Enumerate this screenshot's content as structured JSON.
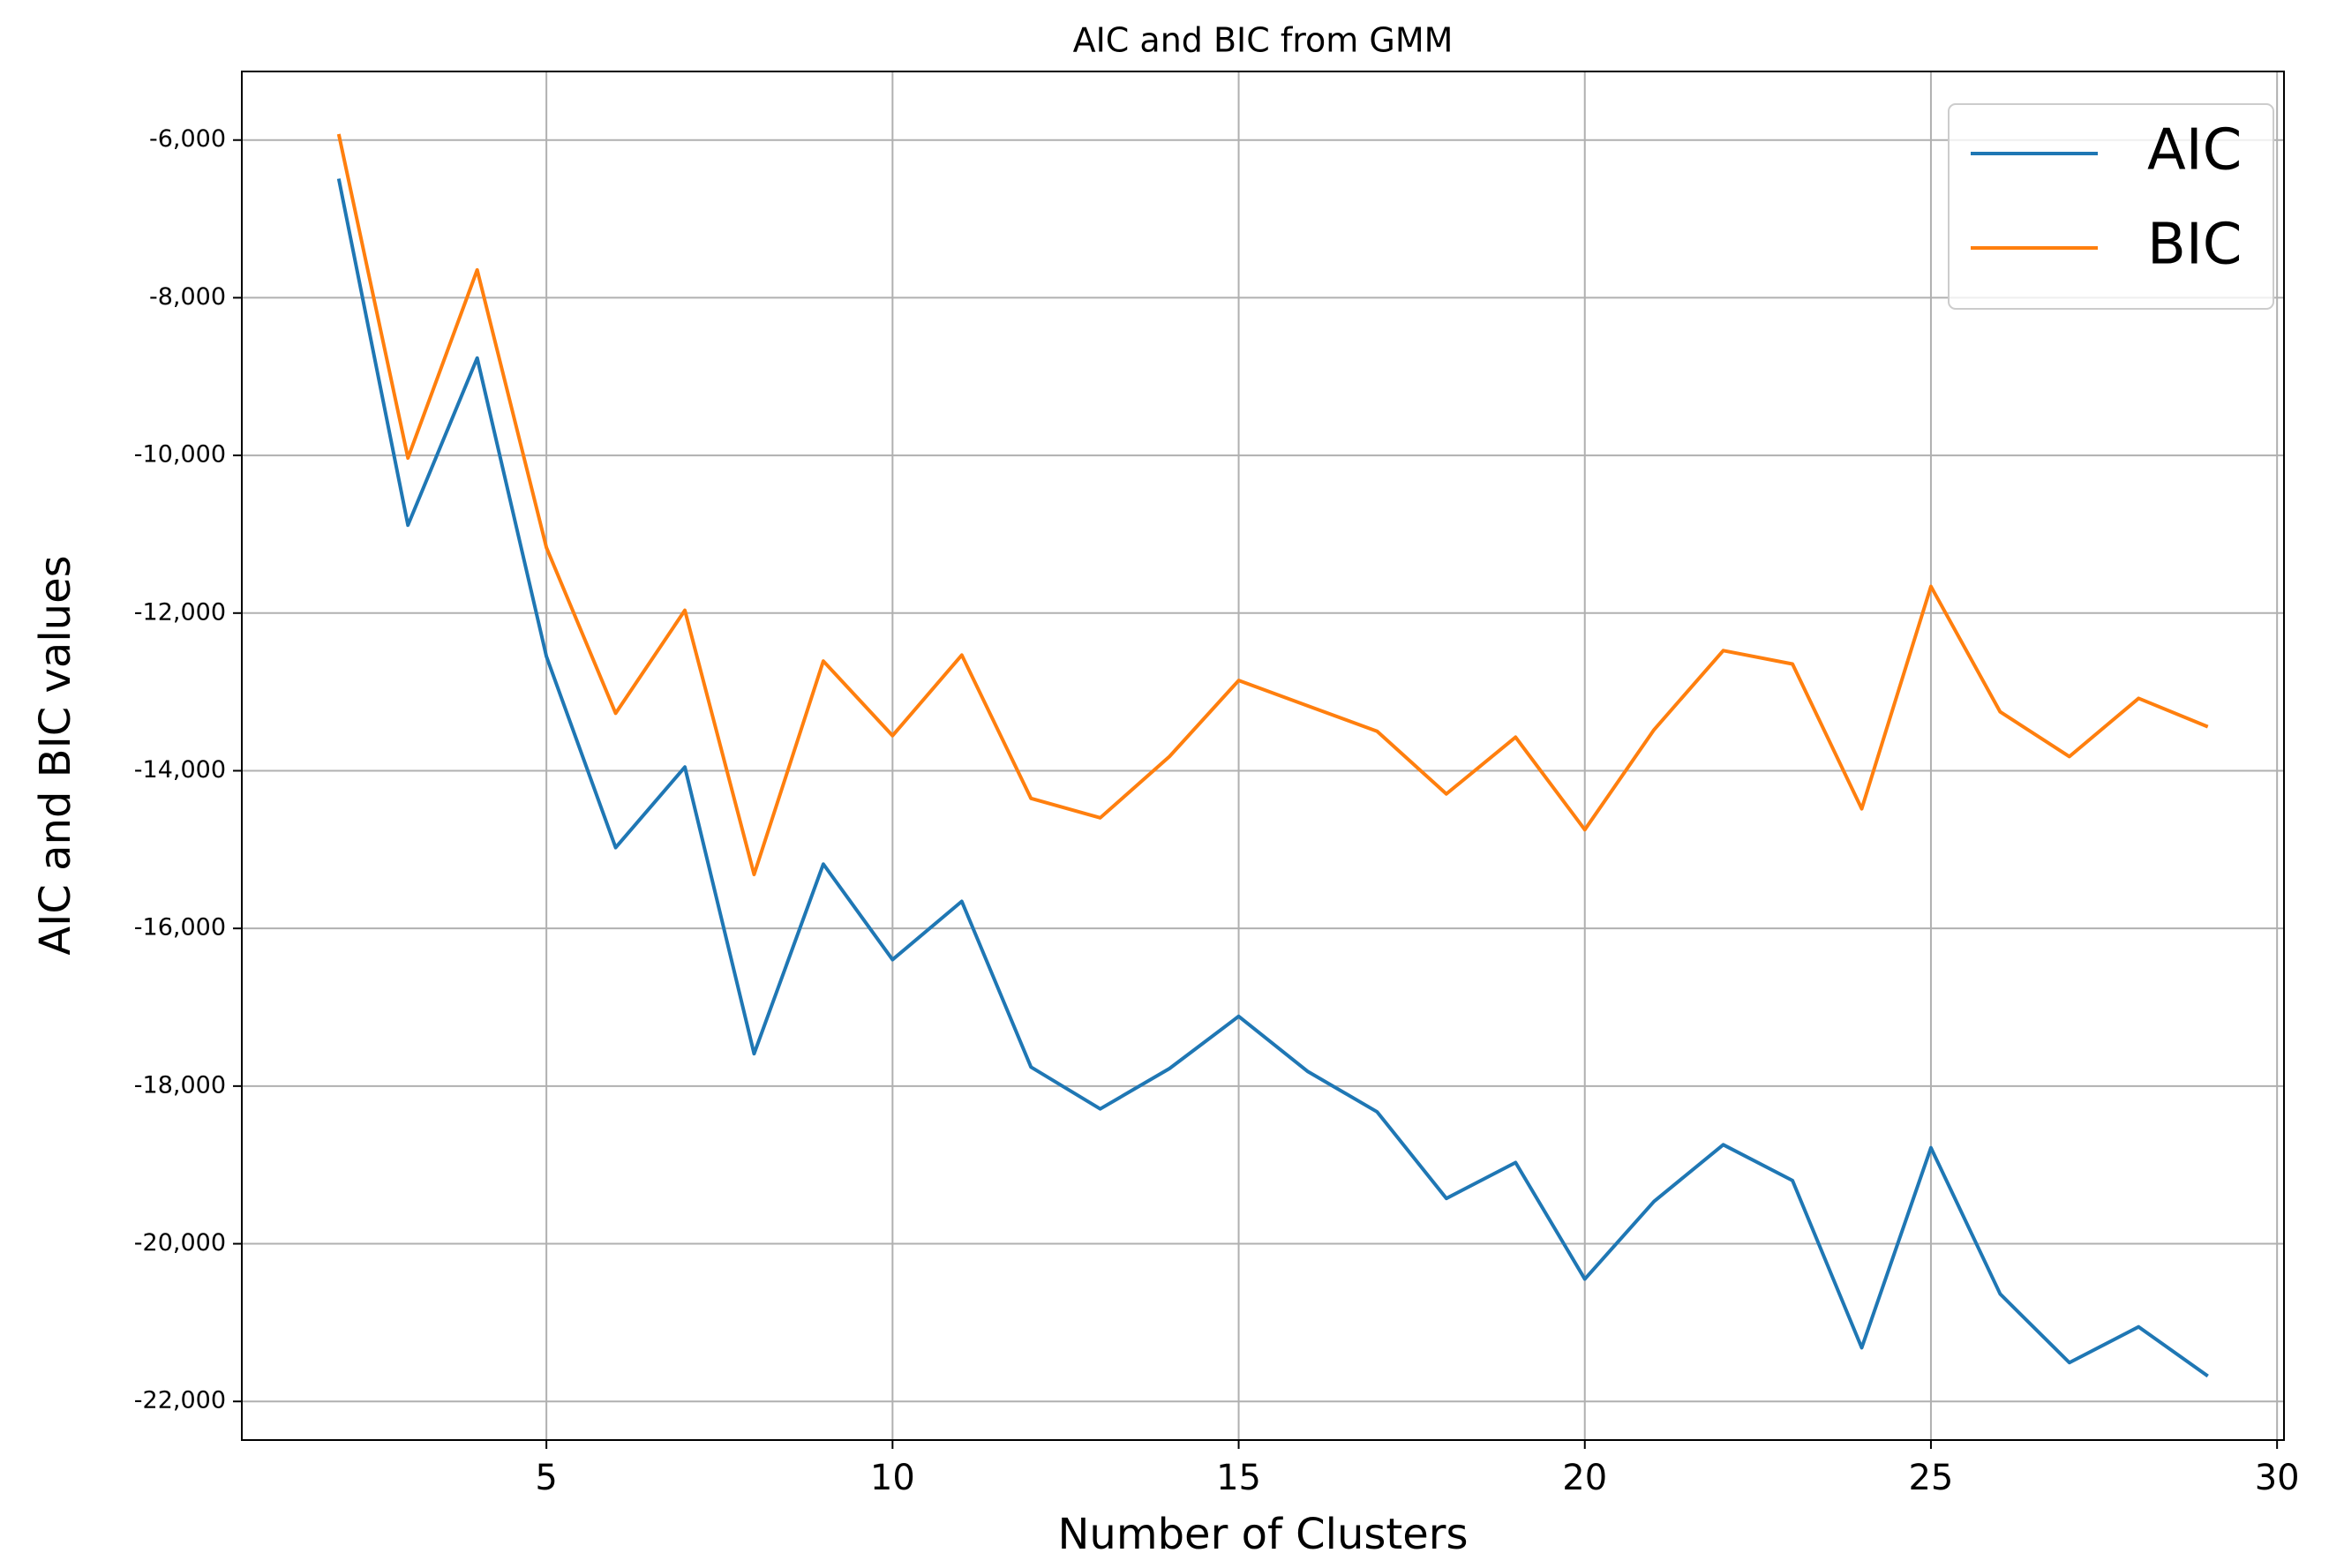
{
  "chart_data": {
    "type": "line",
    "title": "AIC and BIC from GMM",
    "x_label": "Number of Clusters",
    "y_label": "AIC and BIC values",
    "x": [
      2,
      3,
      4,
      5,
      6,
      7,
      8,
      9,
      10,
      11,
      12,
      13,
      14,
      15,
      16,
      17,
      18,
      19,
      20,
      21,
      22,
      23,
      24,
      25,
      26,
      27,
      28,
      29
    ],
    "series": [
      {
        "name": "AIC",
        "color": "#1f77b4",
        "values": [
          -6490,
          -10885,
          -8765,
          -12550,
          -14975,
          -13953,
          -17589,
          -15184,
          -16396,
          -15657,
          -17759,
          -18289,
          -17778,
          -17115,
          -17816,
          -18327,
          -19425,
          -18970,
          -20448,
          -19463,
          -18744,
          -19198,
          -21319,
          -18782,
          -20637,
          -21508,
          -21054,
          -21679
        ]
      },
      {
        "name": "BIC",
        "color": "#ff7f0e",
        "values": [
          -5924,
          -10033,
          -7647,
          -11169,
          -13271,
          -11965,
          -15316,
          -12609,
          -13555,
          -12533,
          -14351,
          -14597,
          -13820,
          -12855,
          -13177,
          -13499,
          -14294,
          -13574,
          -14748,
          -13480,
          -12476,
          -12646,
          -14483,
          -11662,
          -13253,
          -13820,
          -13082,
          -13442
        ]
      }
    ],
    "xlim": [
      0.6,
      30.1
    ],
    "xticks": [
      5,
      10,
      15,
      20,
      25,
      30
    ],
    "ylim": [
      -22490,
      -5130
    ],
    "yticks": [
      {
        "value": -22000,
        "label": "-22,000"
      },
      {
        "value": -20000,
        "label": "-20,000"
      },
      {
        "value": -18000,
        "label": "-18,000"
      },
      {
        "value": -16000,
        "label": "-16,000"
      },
      {
        "value": -14000,
        "label": "-14,000"
      },
      {
        "value": -12000,
        "label": "-12,000"
      },
      {
        "value": -10000,
        "label": "-10,000"
      },
      {
        "value": -8000,
        "label": "-8,000"
      },
      {
        "value": -6000,
        "label": "-6,000"
      }
    ],
    "grid": true,
    "legend": "upper right"
  }
}
